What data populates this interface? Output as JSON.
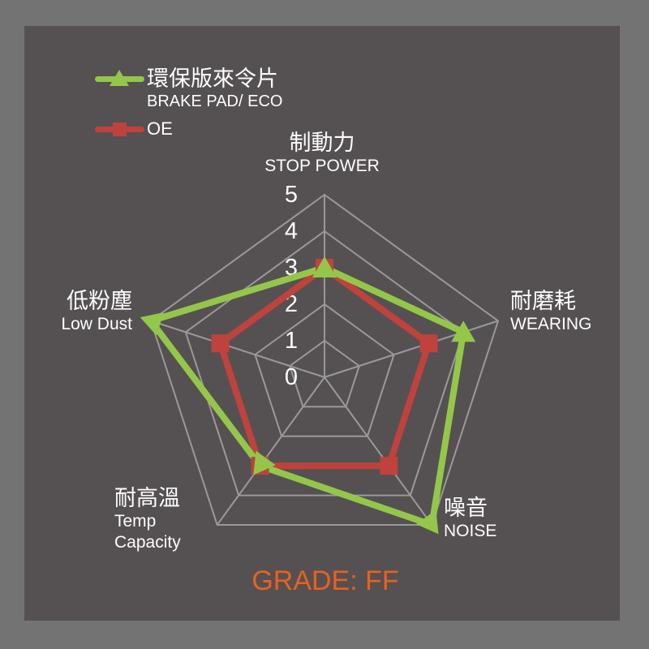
{
  "colors": {
    "outer_background": "#747373",
    "panel_background": "#555152",
    "grid": "#9a999a",
    "text": "#ffffff",
    "eco_green": "#93c649",
    "oe_red": "#bf423d",
    "grade_orange": "#e9611c"
  },
  "legend": {
    "items": [
      {
        "label": "環保版來令片",
        "sublabel": "BRAKE PAD/ ECO",
        "color": "#93c649",
        "marker": "triangle"
      },
      {
        "label": "OE",
        "sublabel": "",
        "color": "#bf423d",
        "marker": "square"
      }
    ]
  },
  "grade": {
    "label": "GRADE: FF"
  },
  "chart_data": {
    "type": "radar",
    "title": "",
    "categories": [
      {
        "zh": "制動力",
        "en": "STOP POWER"
      },
      {
        "zh": "耐磨耗",
        "en": "WEARING"
      },
      {
        "zh": "噪音",
        "en": "NOISE"
      },
      {
        "zh": "耐高溫",
        "en": "Temp Capacity"
      },
      {
        "zh": "低粉塵",
        "en": "Low Dust"
      }
    ],
    "series": [
      {
        "name": "環保版來令片 BRAKE PAD/ ECO",
        "values": [
          3,
          4,
          5,
          3,
          5
        ],
        "color": "#93c649",
        "marker": "triangle"
      },
      {
        "name": "OE",
        "values": [
          3,
          3,
          3,
          3,
          3
        ],
        "color": "#bf423d",
        "marker": "square"
      }
    ],
    "ticks": [
      5,
      4,
      3,
      2,
      1,
      0
    ],
    "max": 5,
    "axis_range": [
      0,
      5
    ],
    "grid": true,
    "grid_color": "#9a999a",
    "tick_color": "#ffffff",
    "legend_position": "top-left"
  }
}
